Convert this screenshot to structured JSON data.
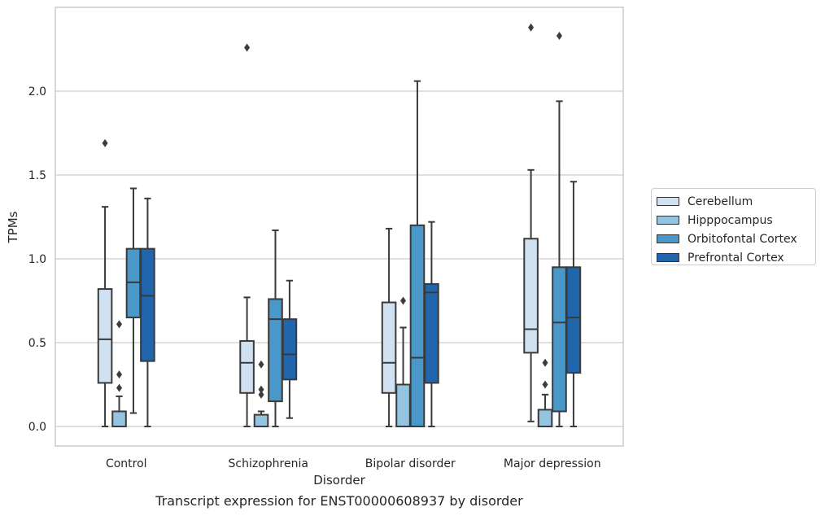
{
  "caption": "Transcript expression for ENST00000608937 by disorder",
  "chart_data": {
    "type": "box",
    "title": "",
    "xlabel": "Disorder",
    "ylabel": "TPMs",
    "ylim": [
      -0.12,
      2.5
    ],
    "yticks": [
      "0.0",
      "0.5",
      "1.0",
      "1.5",
      "2.0"
    ],
    "grid": "horizontal",
    "legend_position": "right",
    "categories": [
      "Control",
      "Schizophrenia",
      "Bipolar disorder",
      "Major depression"
    ],
    "series": [
      {
        "name": "Cerebellum",
        "color": "#d0e1f2",
        "boxes": [
          {
            "whislo": 0.0,
            "q1": 0.26,
            "med": 0.52,
            "q3": 0.82,
            "whishi": 1.31,
            "fliers": [
              1.69
            ]
          },
          {
            "whislo": 0.0,
            "q1": 0.2,
            "med": 0.38,
            "q3": 0.51,
            "whishi": 0.77,
            "fliers": [
              2.26
            ]
          },
          {
            "whislo": 0.0,
            "q1": 0.2,
            "med": 0.38,
            "q3": 0.74,
            "whishi": 1.18,
            "fliers": []
          },
          {
            "whislo": 0.03,
            "q1": 0.44,
            "med": 0.58,
            "q3": 1.12,
            "whishi": 1.53,
            "fliers": [
              2.38
            ]
          }
        ]
      },
      {
        "name": "Hipppocampus",
        "color": "#94c4df",
        "boxes": [
          {
            "whislo": 0.0,
            "q1": 0.0,
            "med": 0.0,
            "q3": 0.09,
            "whishi": 0.18,
            "fliers": [
              0.23,
              0.31,
              0.61
            ]
          },
          {
            "whislo": 0.0,
            "q1": 0.0,
            "med": 0.0,
            "q3": 0.07,
            "whishi": 0.09,
            "fliers": [
              0.19,
              0.22,
              0.37
            ]
          },
          {
            "whislo": 0.0,
            "q1": 0.0,
            "med": 0.0,
            "q3": 0.25,
            "whishi": 0.59,
            "fliers": [
              0.75
            ]
          },
          {
            "whislo": 0.0,
            "q1": 0.0,
            "med": 0.0,
            "q3": 0.1,
            "whishi": 0.19,
            "fliers": [
              0.25,
              0.38
            ]
          }
        ]
      },
      {
        "name": "Orbitofontal Cortex",
        "color": "#4a98c9",
        "boxes": [
          {
            "whislo": 0.08,
            "q1": 0.65,
            "med": 0.86,
            "q3": 1.06,
            "whishi": 1.42,
            "fliers": []
          },
          {
            "whislo": 0.0,
            "q1": 0.15,
            "med": 0.64,
            "q3": 0.76,
            "whishi": 1.17,
            "fliers": []
          },
          {
            "whislo": 0.0,
            "q1": 0.0,
            "med": 0.41,
            "q3": 1.2,
            "whishi": 2.06,
            "fliers": []
          },
          {
            "whislo": 0.0,
            "q1": 0.09,
            "med": 0.62,
            "q3": 0.95,
            "whishi": 1.94,
            "fliers": [
              2.33
            ]
          }
        ]
      },
      {
        "name": "Prefrontal Cortex",
        "color": "#2166ac",
        "boxes": [
          {
            "whislo": 0.0,
            "q1": 0.39,
            "med": 0.78,
            "q3": 1.06,
            "whishi": 1.36,
            "fliers": []
          },
          {
            "whislo": 0.05,
            "q1": 0.28,
            "med": 0.43,
            "q3": 0.64,
            "whishi": 0.87,
            "fliers": []
          },
          {
            "whislo": 0.0,
            "q1": 0.26,
            "med": 0.8,
            "q3": 0.85,
            "whishi": 1.22,
            "fliers": []
          },
          {
            "whislo": 0.0,
            "q1": 0.32,
            "med": 0.65,
            "q3": 0.95,
            "whishi": 1.46,
            "fliers": []
          }
        ]
      }
    ]
  }
}
